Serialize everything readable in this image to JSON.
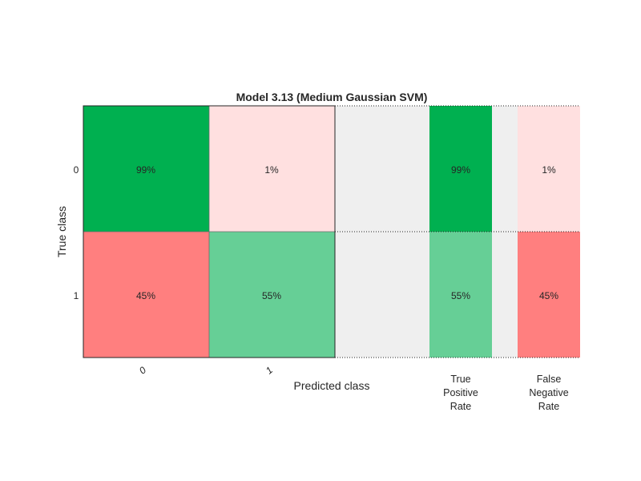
{
  "chart_data": {
    "type": "heatmap",
    "title": "Model 3.13 (Medium Gaussian SVM)",
    "xlabel": "Predicted class",
    "ylabel": "True class",
    "row_labels": [
      "0",
      "1"
    ],
    "col_labels": [
      "0",
      "1"
    ],
    "matrix_percent": [
      [
        99,
        1
      ],
      [
        45,
        55
      ]
    ],
    "matrix_text": [
      [
        "99%",
        "1%"
      ],
      [
        "45%",
        "55%"
      ]
    ],
    "summary_columns": [
      {
        "label_lines": [
          "True",
          "Positive",
          "Rate"
        ],
        "values": [
          99,
          55
        ],
        "text": [
          "99%",
          "55%"
        ]
      },
      {
        "label_lines": [
          "False",
          "Negative",
          "Rate"
        ],
        "values": [
          1,
          45
        ],
        "text": [
          "1%",
          "45%"
        ]
      }
    ],
    "colors": {
      "correct_high": "#00b050",
      "correct_mid": "#66cf96",
      "error_high": "#ff7f7f",
      "error_low": "#ffe0e0",
      "gap": "#efefef"
    }
  }
}
